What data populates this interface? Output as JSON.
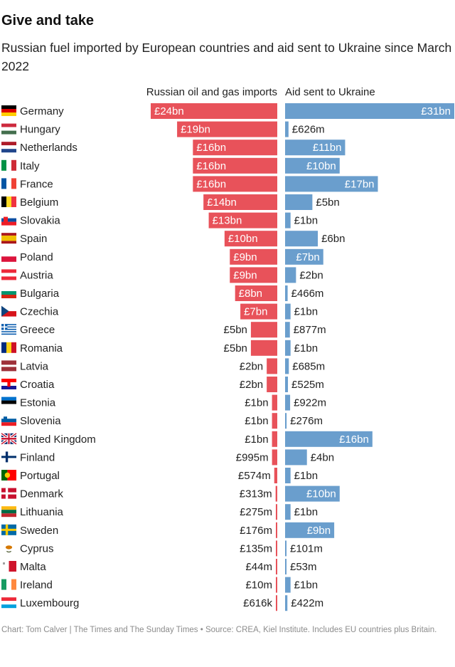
{
  "title": "Give and take",
  "subtitle": "Russian fuel imported by European countries and aid sent to Ukraine since March 2022",
  "footer": "Chart: Tom Calver | The Times and The Sunday Times • Source: CREA, Kiel Institute. Includes EU countries plus Britain.",
  "colors": {
    "imports": "#e8525a",
    "aid": "#6a9ecd",
    "text_dark": "#222222",
    "text_light": "#ffffff"
  },
  "chart_data": {
    "type": "bar",
    "orientation": "horizontal",
    "layout": "diverging",
    "unit": "£bn",
    "series": [
      {
        "name": "Russian oil and gas imports",
        "values": [
          24,
          19,
          16,
          16,
          16,
          14,
          13,
          10,
          9,
          9,
          8,
          7,
          5,
          5,
          2,
          2,
          1,
          1,
          1,
          0.995,
          0.574,
          0.313,
          0.275,
          0.176,
          0.135,
          0.044,
          0.01,
          0.000616
        ],
        "labels": [
          "£24bn",
          "£19bn",
          "£16bn",
          "£16bn",
          "£16bn",
          "£14bn",
          "£13bn",
          "£10bn",
          "£9bn",
          "£9bn",
          "£8bn",
          "£7bn",
          "£5bn",
          "£5bn",
          "£2bn",
          "£2bn",
          "£1bn",
          "£1bn",
          "£1bn",
          "£995m",
          "£574m",
          "£313m",
          "£275m",
          "£176m",
          "£135m",
          "£44m",
          "£10m",
          "£616k"
        ]
      },
      {
        "name": "Aid sent to Ukraine",
        "values": [
          31,
          0.626,
          11,
          10,
          17,
          5,
          1,
          6,
          7,
          2,
          0.466,
          1,
          0.877,
          1,
          0.685,
          0.525,
          0.922,
          0.276,
          16,
          4,
          1,
          10,
          1,
          9,
          0.101,
          0.053,
          1,
          0.422
        ],
        "labels": [
          "£31bn",
          "£626m",
          "£11bn",
          "£10bn",
          "£17bn",
          "£5bn",
          "£1bn",
          "£6bn",
          "£7bn",
          "£2bn",
          "£466m",
          "£1bn",
          "£877m",
          "£1bn",
          "£685m",
          "£525m",
          "£922m",
          "£276m",
          "£16bn",
          "£4bn",
          "£1bn",
          "£10bn",
          "£1bn",
          "£9bn",
          "£101m",
          "£53m",
          "£1bn",
          "£422m"
        ]
      }
    ],
    "countries": [
      {
        "name": "Germany",
        "flag": "germany-flag"
      },
      {
        "name": "Hungary",
        "flag": "hungary-flag"
      },
      {
        "name": "Netherlands",
        "flag": "netherlands-flag"
      },
      {
        "name": "Italy",
        "flag": "italy-flag"
      },
      {
        "name": "France",
        "flag": "france-flag"
      },
      {
        "name": "Belgium",
        "flag": "belgium-flag"
      },
      {
        "name": "Slovakia",
        "flag": "slovakia-flag"
      },
      {
        "name": "Spain",
        "flag": "spain-flag"
      },
      {
        "name": "Poland",
        "flag": "poland-flag"
      },
      {
        "name": "Austria",
        "flag": "austria-flag"
      },
      {
        "name": "Bulgaria",
        "flag": "bulgaria-flag"
      },
      {
        "name": "Czechia",
        "flag": "czechia-flag"
      },
      {
        "name": "Greece",
        "flag": "greece-flag"
      },
      {
        "name": "Romania",
        "flag": "romania-flag"
      },
      {
        "name": "Latvia",
        "flag": "latvia-flag"
      },
      {
        "name": "Croatia",
        "flag": "croatia-flag"
      },
      {
        "name": "Estonia",
        "flag": "estonia-flag"
      },
      {
        "name": "Slovenia",
        "flag": "slovenia-flag"
      },
      {
        "name": "United Kingdom",
        "flag": "united-kingdom-flag"
      },
      {
        "name": "Finland",
        "flag": "finland-flag"
      },
      {
        "name": "Portugal",
        "flag": "portugal-flag"
      },
      {
        "name": "Denmark",
        "flag": "denmark-flag"
      },
      {
        "name": "Lithuania",
        "flag": "lithuania-flag"
      },
      {
        "name": "Sweden",
        "flag": "sweden-flag"
      },
      {
        "name": "Cyprus",
        "flag": "cyprus-flag"
      },
      {
        "name": "Malta",
        "flag": "malta-flag"
      },
      {
        "name": "Ireland",
        "flag": "ireland-flag"
      },
      {
        "name": "Luxembourg",
        "flag": "luxembourg-flag"
      }
    ]
  }
}
